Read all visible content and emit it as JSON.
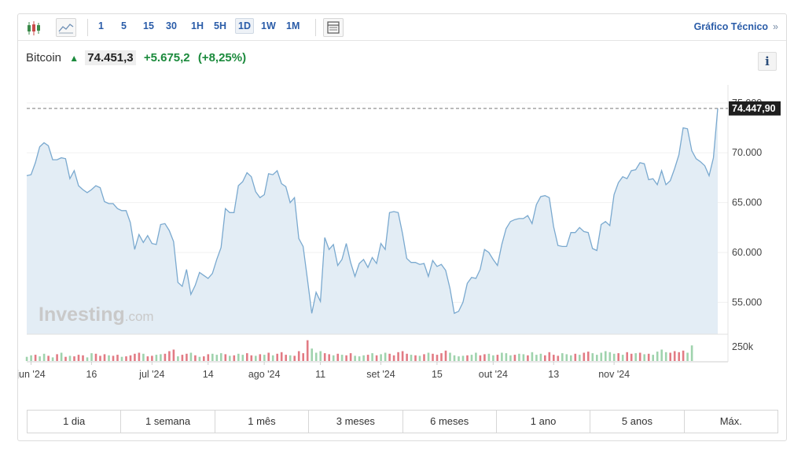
{
  "toolbar": {
    "intervals": [
      "1",
      "5",
      "15",
      "30",
      "1H",
      "5H",
      "1D",
      "1W",
      "1M"
    ],
    "active_interval": "1D",
    "technical_link": "Gráfico Técnico",
    "technical_chevron": "»",
    "icons": [
      "candlestick-icon",
      "area-chart-icon",
      "table-view-icon"
    ]
  },
  "header": {
    "name": "Bitcoin",
    "arrow": "▲",
    "price": "74.451,3",
    "change": "+5.675,2",
    "change_pct": "(+8,25%)",
    "info": "i"
  },
  "watermark": {
    "brand": "Investing",
    "suffix": ".com"
  },
  "colors": {
    "line": "#7aa9cf",
    "area": "#e3edf5",
    "up_volume": "#9fd3ad",
    "down_volume": "#e27b84",
    "positive": "#1b8a3c",
    "accent": "#2a5ca8"
  },
  "chart_data": {
    "type": "area",
    "y_ticks": [
      "75.000",
      "70.000",
      "65.000",
      "60.000",
      "55.000"
    ],
    "y_tick_values": [
      75000,
      70000,
      65000,
      60000,
      55000
    ],
    "ylim": [
      51800,
      76800
    ],
    "last_value_label": "74.447,90",
    "last_value": 74447.9,
    "volume_label": "250k",
    "x_ticks": [
      "jun '24",
      "16",
      "jul '24",
      "14",
      "ago '24",
      "11",
      "set '24",
      "15",
      "out '24",
      "13",
      "nov '24"
    ],
    "x_tick_index": [
      1,
      15,
      29,
      42,
      55,
      68,
      82,
      95,
      108,
      122,
      136
    ],
    "series": [
      {
        "values": [
          67700,
          67800,
          69000,
          70600,
          71000,
          70700,
          69300,
          69300,
          69500,
          69400,
          67400,
          68200,
          66700,
          66300,
          66000,
          66300,
          66700,
          66500,
          65100,
          64900,
          64900,
          64400,
          64200,
          64200,
          63000,
          60300,
          61800,
          61000,
          61700,
          60900,
          60800,
          62800,
          62900,
          62200,
          61100,
          57000,
          56600,
          58300,
          55800,
          56700,
          58000,
          57700,
          57400,
          57900,
          59300,
          60500,
          64400,
          64000,
          64000,
          66700,
          67100,
          68000,
          67600,
          66100,
          65500,
          65800,
          67900,
          67800,
          68200,
          66900,
          66600,
          65000,
          65500,
          61400,
          60600,
          57300,
          53900,
          56000,
          55100,
          61500,
          60300,
          60800,
          58700,
          59300,
          60900,
          59000,
          57600,
          58900,
          59300,
          58500,
          59500,
          58900,
          60900,
          60300,
          64000,
          64100,
          64000,
          61900,
          59400,
          59000,
          59000,
          58800,
          58900,
          57600,
          59200,
          58600,
          58800,
          58200,
          56400,
          53900,
          54100,
          55000,
          56900,
          57500,
          57400,
          58300,
          60300,
          60000,
          59300,
          58700,
          60800,
          62400,
          63100,
          63300,
          63400,
          63400,
          63700,
          62900,
          64800,
          65600,
          65700,
          65500,
          62600,
          60700,
          60600,
          60600,
          62000,
          62000,
          62500,
          62100,
          62000,
          60400,
          60200,
          62800,
          63100,
          62700,
          65800,
          67000,
          67600,
          67400,
          68200,
          68300,
          69000,
          68900,
          67300,
          67400,
          66800,
          68200,
          66800,
          67200,
          68400,
          69800,
          72500,
          72400,
          70200,
          69400,
          69100,
          68700,
          67700,
          69500,
          74447.9
        ]
      }
    ],
    "volume": [
      {
        "v": 40,
        "up": true
      },
      {
        "v": 55,
        "up": true
      },
      {
        "v": 60,
        "up": false
      },
      {
        "v": 45,
        "up": true
      },
      {
        "v": 70,
        "up": true
      },
      {
        "v": 50,
        "up": false
      },
      {
        "v": 35,
        "up": true
      },
      {
        "v": 65,
        "up": false
      },
      {
        "v": 80,
        "up": true
      },
      {
        "v": 40,
        "up": false
      },
      {
        "v": 50,
        "up": true
      },
      {
        "v": 45,
        "up": false
      },
      {
        "v": 60,
        "up": false
      },
      {
        "v": 55,
        "up": false
      },
      {
        "v": 35,
        "up": true
      },
      {
        "v": 75,
        "up": true
      },
      {
        "v": 70,
        "up": false
      },
      {
        "v": 50,
        "up": false
      },
      {
        "v": 65,
        "up": false
      },
      {
        "v": 55,
        "up": true
      },
      {
        "v": 50,
        "up": false
      },
      {
        "v": 60,
        "up": false
      },
      {
        "v": 40,
        "up": true
      },
      {
        "v": 45,
        "up": false
      },
      {
        "v": 55,
        "up": false
      },
      {
        "v": 70,
        "up": false
      },
      {
        "v": 80,
        "up": false
      },
      {
        "v": 70,
        "up": true
      },
      {
        "v": 45,
        "up": false
      },
      {
        "v": 50,
        "up": false
      },
      {
        "v": 60,
        "up": true
      },
      {
        "v": 65,
        "up": true
      },
      {
        "v": 70,
        "up": false
      },
      {
        "v": 95,
        "up": false
      },
      {
        "v": 110,
        "up": false
      },
      {
        "v": 45,
        "up": true
      },
      {
        "v": 60,
        "up": false
      },
      {
        "v": 70,
        "up": false
      },
      {
        "v": 80,
        "up": true
      },
      {
        "v": 55,
        "up": false
      },
      {
        "v": 40,
        "up": true
      },
      {
        "v": 45,
        "up": false
      },
      {
        "v": 65,
        "up": false
      },
      {
        "v": 70,
        "up": true
      },
      {
        "v": 60,
        "up": true
      },
      {
        "v": 75,
        "up": true
      },
      {
        "v": 65,
        "up": false
      },
      {
        "v": 50,
        "up": true
      },
      {
        "v": 55,
        "up": false
      },
      {
        "v": 70,
        "up": true
      },
      {
        "v": 60,
        "up": true
      },
      {
        "v": 75,
        "up": false
      },
      {
        "v": 55,
        "up": false
      },
      {
        "v": 50,
        "up": true
      },
      {
        "v": 65,
        "up": false
      },
      {
        "v": 60,
        "up": true
      },
      {
        "v": 80,
        "up": false
      },
      {
        "v": 55,
        "up": true
      },
      {
        "v": 70,
        "up": false
      },
      {
        "v": 85,
        "up": false
      },
      {
        "v": 60,
        "up": false
      },
      {
        "v": 55,
        "up": true
      },
      {
        "v": 50,
        "up": false
      },
      {
        "v": 95,
        "up": false
      },
      {
        "v": 75,
        "up": false
      },
      {
        "v": 200,
        "up": false
      },
      {
        "v": 120,
        "up": true
      },
      {
        "v": 80,
        "up": true
      },
      {
        "v": 95,
        "up": true
      },
      {
        "v": 75,
        "up": false
      },
      {
        "v": 65,
        "up": false
      },
      {
        "v": 55,
        "up": true
      },
      {
        "v": 70,
        "up": false
      },
      {
        "v": 60,
        "up": true
      },
      {
        "v": 55,
        "up": false
      },
      {
        "v": 75,
        "up": false
      },
      {
        "v": 50,
        "up": true
      },
      {
        "v": 45,
        "up": true
      },
      {
        "v": 55,
        "up": true
      },
      {
        "v": 60,
        "up": false
      },
      {
        "v": 75,
        "up": true
      },
      {
        "v": 55,
        "up": false
      },
      {
        "v": 65,
        "up": true
      },
      {
        "v": 80,
        "up": true
      },
      {
        "v": 70,
        "up": false
      },
      {
        "v": 55,
        "up": false
      },
      {
        "v": 85,
        "up": false
      },
      {
        "v": 95,
        "up": false
      },
      {
        "v": 70,
        "up": false
      },
      {
        "v": 60,
        "up": true
      },
      {
        "v": 55,
        "up": false
      },
      {
        "v": 50,
        "up": true
      },
      {
        "v": 65,
        "up": false
      },
      {
        "v": 80,
        "up": true
      },
      {
        "v": 70,
        "up": false
      },
      {
        "v": 60,
        "up": false
      },
      {
        "v": 75,
        "up": false
      },
      {
        "v": 100,
        "up": false
      },
      {
        "v": 80,
        "up": true
      },
      {
        "v": 55,
        "up": true
      },
      {
        "v": 45,
        "up": true
      },
      {
        "v": 50,
        "up": true
      },
      {
        "v": 55,
        "up": false
      },
      {
        "v": 60,
        "up": true
      },
      {
        "v": 80,
        "up": true
      },
      {
        "v": 55,
        "up": false
      },
      {
        "v": 65,
        "up": false
      },
      {
        "v": 70,
        "up": true
      },
      {
        "v": 55,
        "up": true
      },
      {
        "v": 60,
        "up": false
      },
      {
        "v": 80,
        "up": true
      },
      {
        "v": 75,
        "up": true
      },
      {
        "v": 55,
        "up": true
      },
      {
        "v": 60,
        "up": false
      },
      {
        "v": 70,
        "up": true
      },
      {
        "v": 65,
        "up": true
      },
      {
        "v": 55,
        "up": false
      },
      {
        "v": 85,
        "up": true
      },
      {
        "v": 60,
        "up": true
      },
      {
        "v": 70,
        "up": true
      },
      {
        "v": 55,
        "up": false
      },
      {
        "v": 85,
        "up": false
      },
      {
        "v": 60,
        "up": false
      },
      {
        "v": 50,
        "up": false
      },
      {
        "v": 75,
        "up": true
      },
      {
        "v": 65,
        "up": true
      },
      {
        "v": 55,
        "up": true
      },
      {
        "v": 70,
        "up": false
      },
      {
        "v": 60,
        "up": true
      },
      {
        "v": 80,
        "up": false
      },
      {
        "v": 90,
        "up": false
      },
      {
        "v": 75,
        "up": true
      },
      {
        "v": 60,
        "up": true
      },
      {
        "v": 80,
        "up": true
      },
      {
        "v": 95,
        "up": true
      },
      {
        "v": 85,
        "up": true
      },
      {
        "v": 70,
        "up": true
      },
      {
        "v": 75,
        "up": false
      },
      {
        "v": 60,
        "up": true
      },
      {
        "v": 85,
        "up": false
      },
      {
        "v": 70,
        "up": false
      },
      {
        "v": 75,
        "up": true
      },
      {
        "v": 80,
        "up": false
      },
      {
        "v": 65,
        "up": true
      },
      {
        "v": 70,
        "up": false
      },
      {
        "v": 60,
        "up": true
      },
      {
        "v": 90,
        "up": true
      },
      {
        "v": 110,
        "up": true
      },
      {
        "v": 85,
        "up": true
      },
      {
        "v": 80,
        "up": false
      },
      {
        "v": 95,
        "up": false
      },
      {
        "v": 85,
        "up": false
      },
      {
        "v": 100,
        "up": false
      },
      {
        "v": 80,
        "up": true
      },
      {
        "v": 150,
        "up": true
      }
    ]
  },
  "ranges": [
    "1 dia",
    "1 semana",
    "1 mês",
    "3 meses",
    "6 meses",
    "1 ano",
    "5 anos",
    "Máx."
  ]
}
